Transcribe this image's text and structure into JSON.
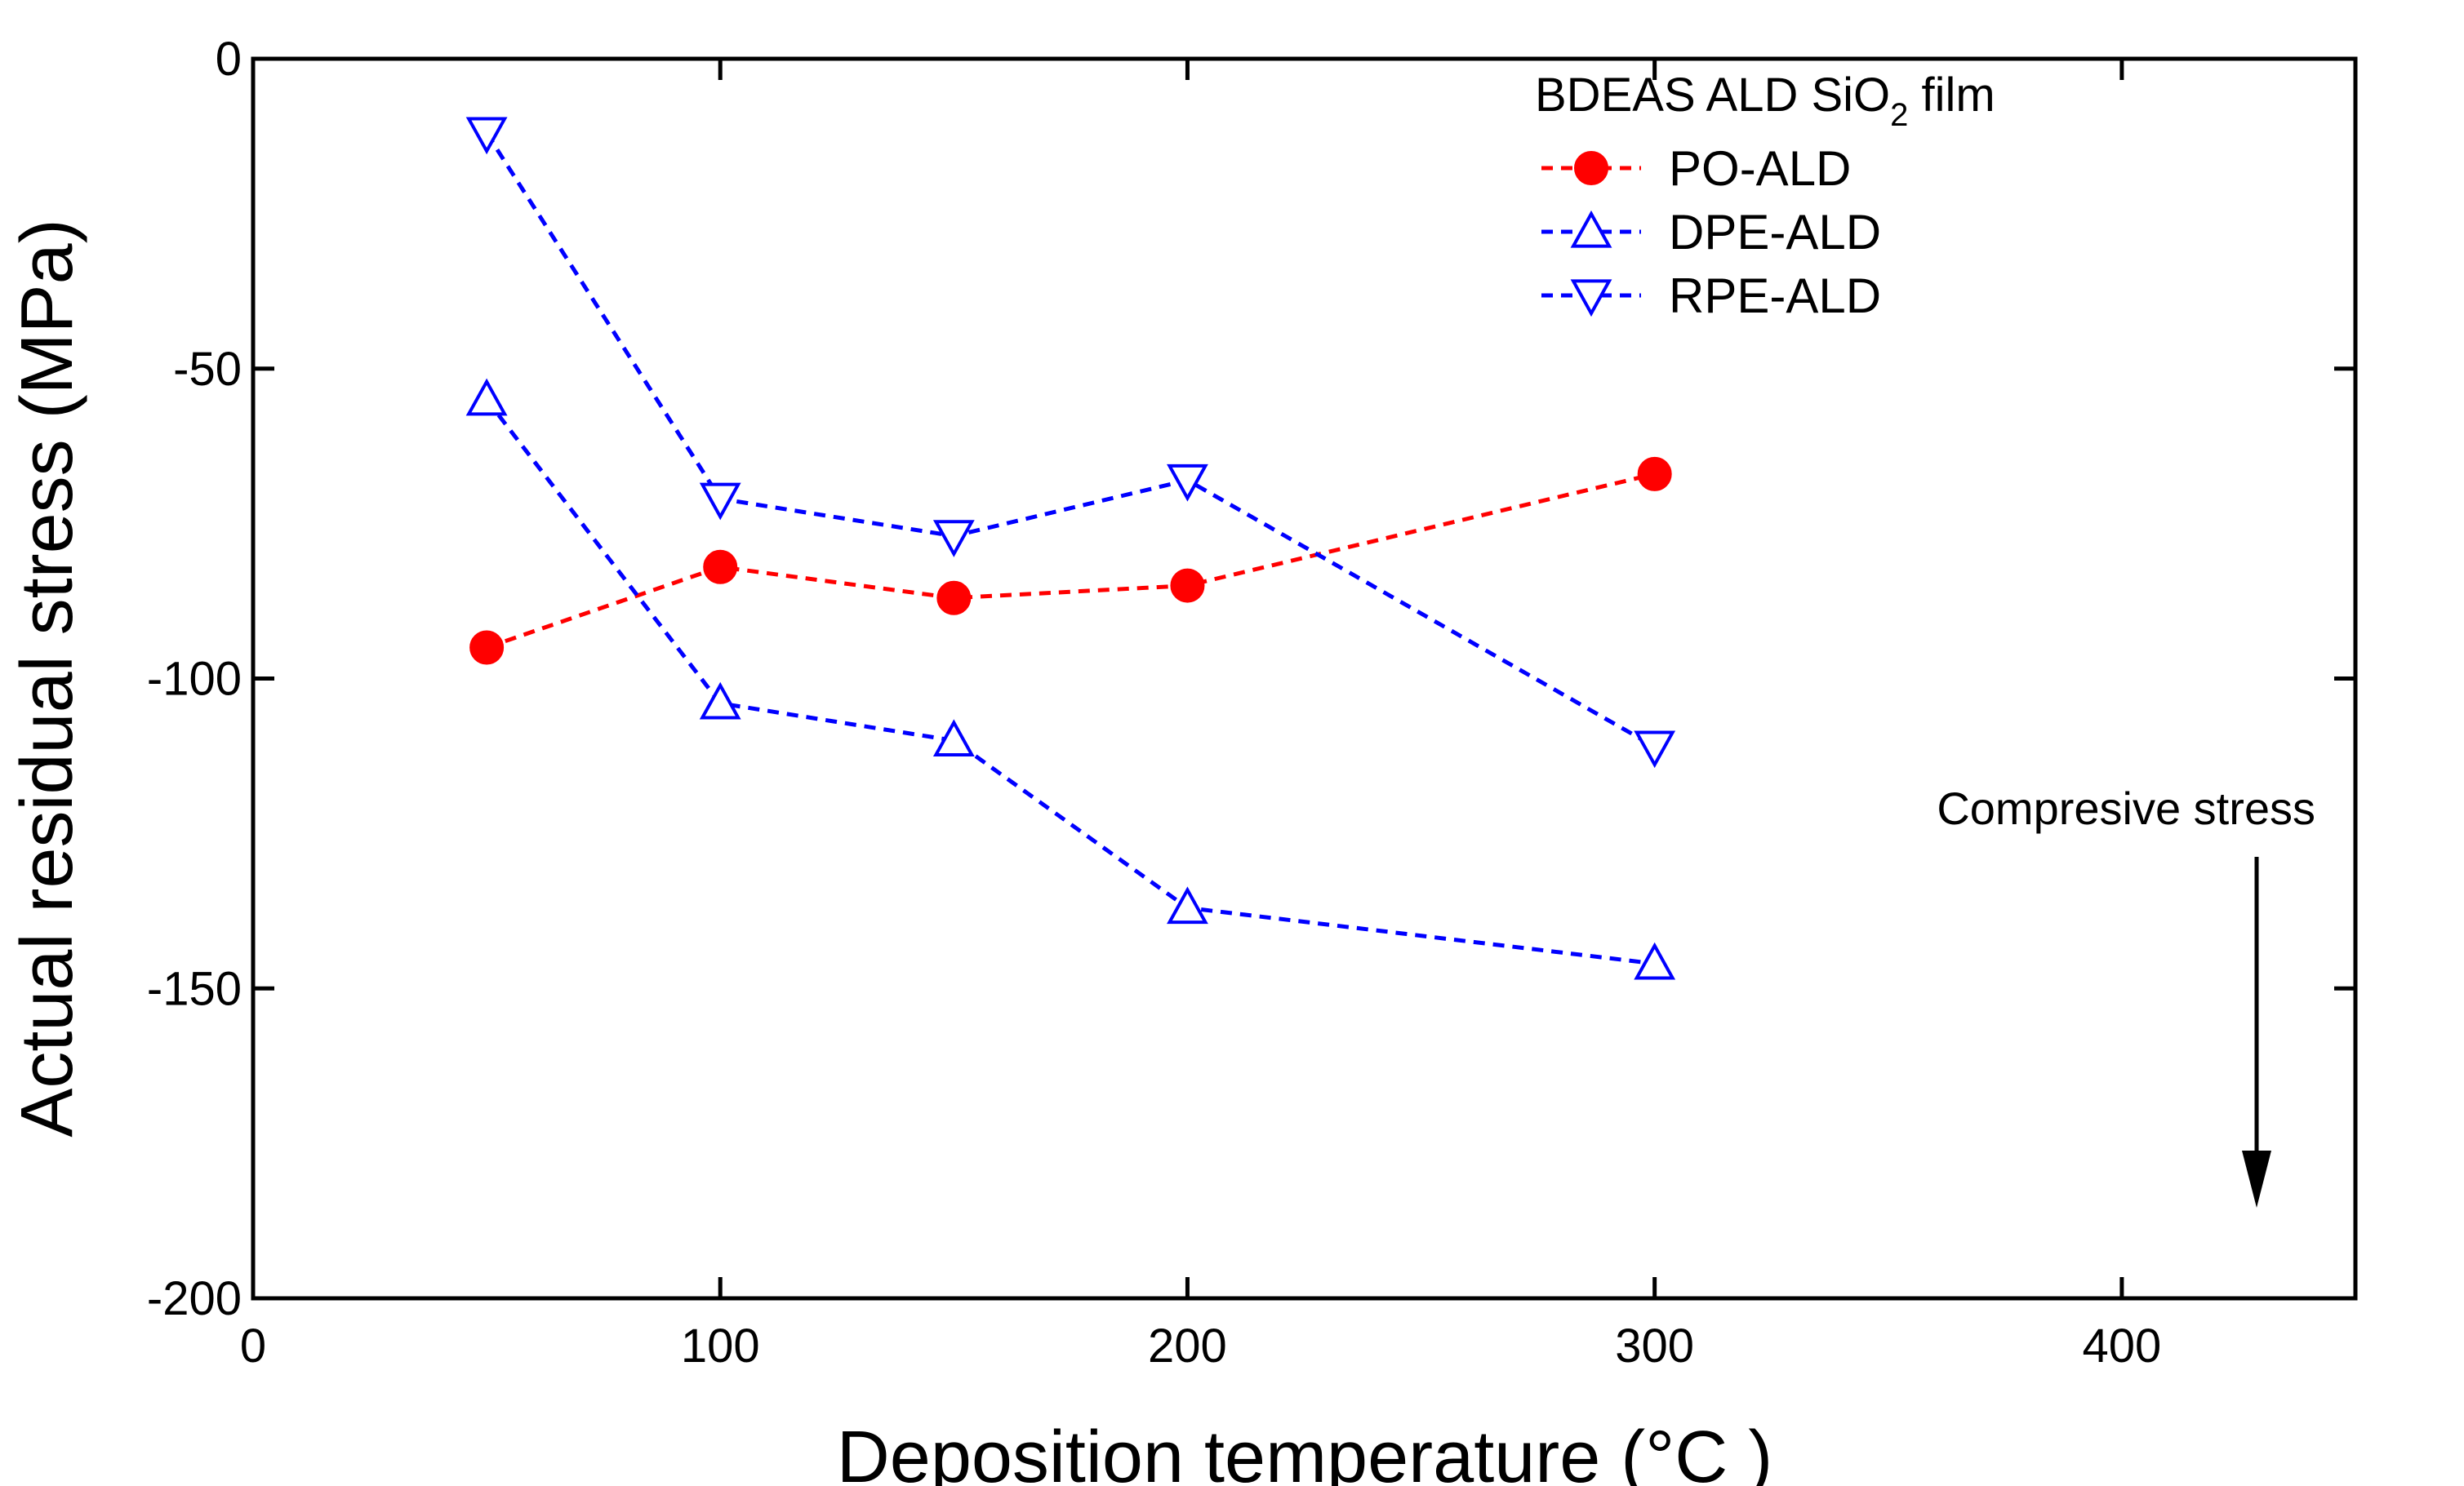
{
  "chart_data": {
    "type": "line",
    "xlabel": "Deposition temperature (°C )",
    "ylabel": "Actual residual stress (MPa)",
    "xlim": [
      0,
      450
    ],
    "ylim": [
      -200,
      0
    ],
    "xticks": [
      0,
      100,
      200,
      300,
      400
    ],
    "yticks": [
      0,
      -50,
      -100,
      -150,
      -200
    ],
    "xtick_labels": [
      "0",
      "100",
      "200",
      "300",
      "400"
    ],
    "ytick_labels": [
      "0",
      "-50",
      "-100",
      "-150",
      "-200"
    ],
    "grid": false,
    "legend_title": "BDEAS ALD SiO2 film",
    "legend_position": "top-right",
    "annotation": "Compresive stress",
    "series": [
      {
        "name": "PO-ALD",
        "color": "#ff0000",
        "marker": "filled-circle",
        "x": [
          50,
          100,
          150,
          200,
          300
        ],
        "y": [
          -95,
          -82,
          -87,
          -85,
          -67
        ]
      },
      {
        "name": "DPE-ALD",
        "color": "#0000ff",
        "marker": "open-triangle-up",
        "x": [
          50,
          100,
          150,
          200,
          300
        ],
        "y": [
          -55,
          -104,
          -110,
          -137,
          -146
        ]
      },
      {
        "name": "RPE-ALD",
        "color": "#0000ff",
        "marker": "open-triangle-down",
        "x": [
          50,
          100,
          150,
          200,
          300
        ],
        "y": [
          -12,
          -71,
          -77,
          -68,
          -111
        ]
      }
    ]
  }
}
